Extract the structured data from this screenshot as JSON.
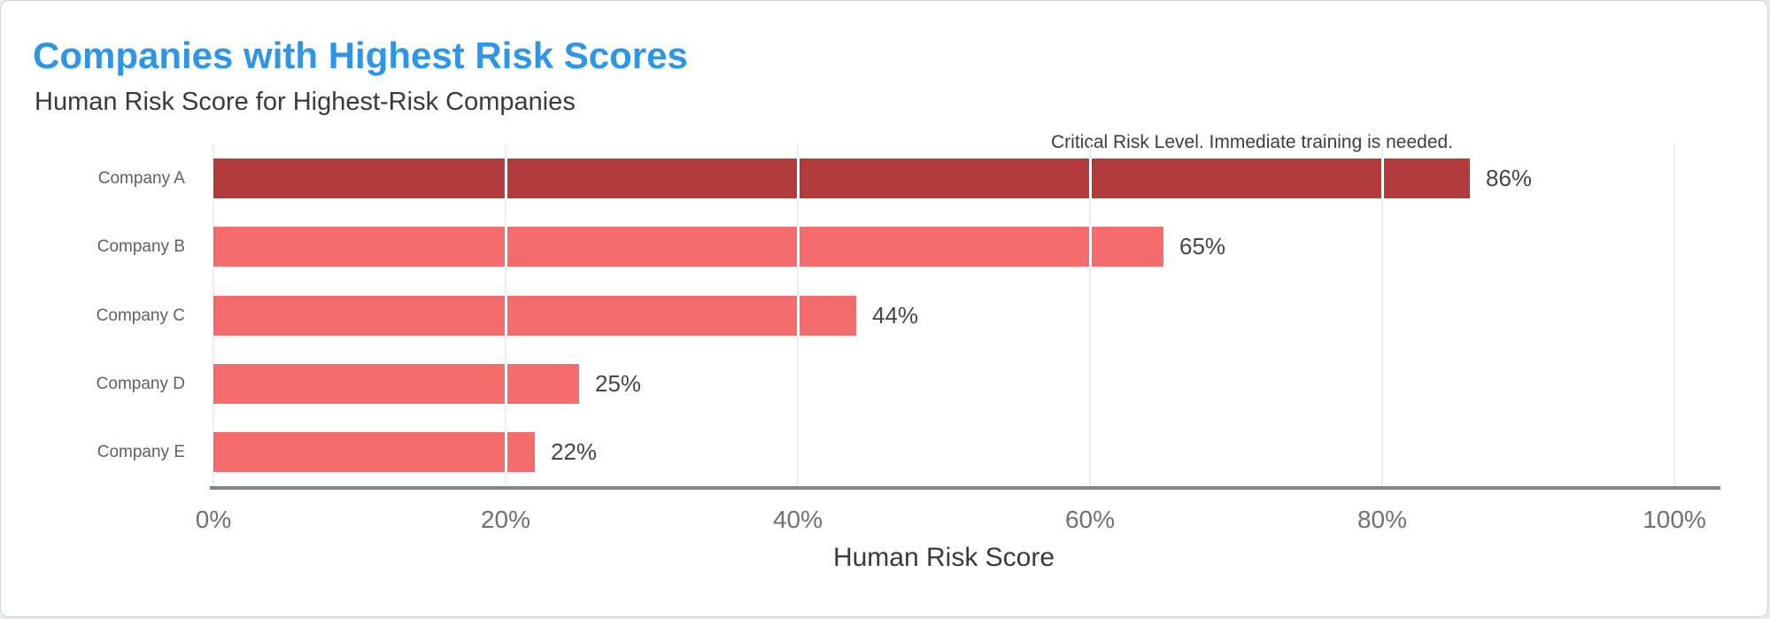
{
  "chart_data": {
    "type": "bar",
    "orientation": "horizontal",
    "title": "Companies with Highest Risk Scores",
    "subtitle": "Human Risk Score for Highest-Risk Companies",
    "annotation": "Critical Risk Level. Immediate training is needed.",
    "categories": [
      "Company A",
      "Company B",
      "Company C",
      "Company D",
      "Company E"
    ],
    "values": [
      86,
      65,
      44,
      25,
      22
    ],
    "value_labels": [
      "86%",
      "65%",
      "44%",
      "25%",
      "22%"
    ],
    "bar_colors": [
      "#b23b3b",
      "#f56c6c",
      "#f56c6c",
      "#f56c6c",
      "#f56c6c"
    ],
    "xlabel": "Human Risk Score",
    "xlim": [
      0,
      100
    ],
    "x_tick_values": [
      0,
      20,
      40,
      60,
      80,
      100
    ],
    "x_ticks": [
      "0%",
      "20%",
      "40%",
      "60%",
      "80%",
      "100%"
    ],
    "grid": true,
    "legend": "none"
  },
  "colors": {
    "title_accent": "#2d96e8",
    "bar_critical": "#b23b3b",
    "bar_normal": "#f56c6c",
    "axis_line": "#848484",
    "gridline": "#ededed",
    "tick_label": "#70707a",
    "category_label": "#5e6166",
    "value_label": "#43464b"
  }
}
